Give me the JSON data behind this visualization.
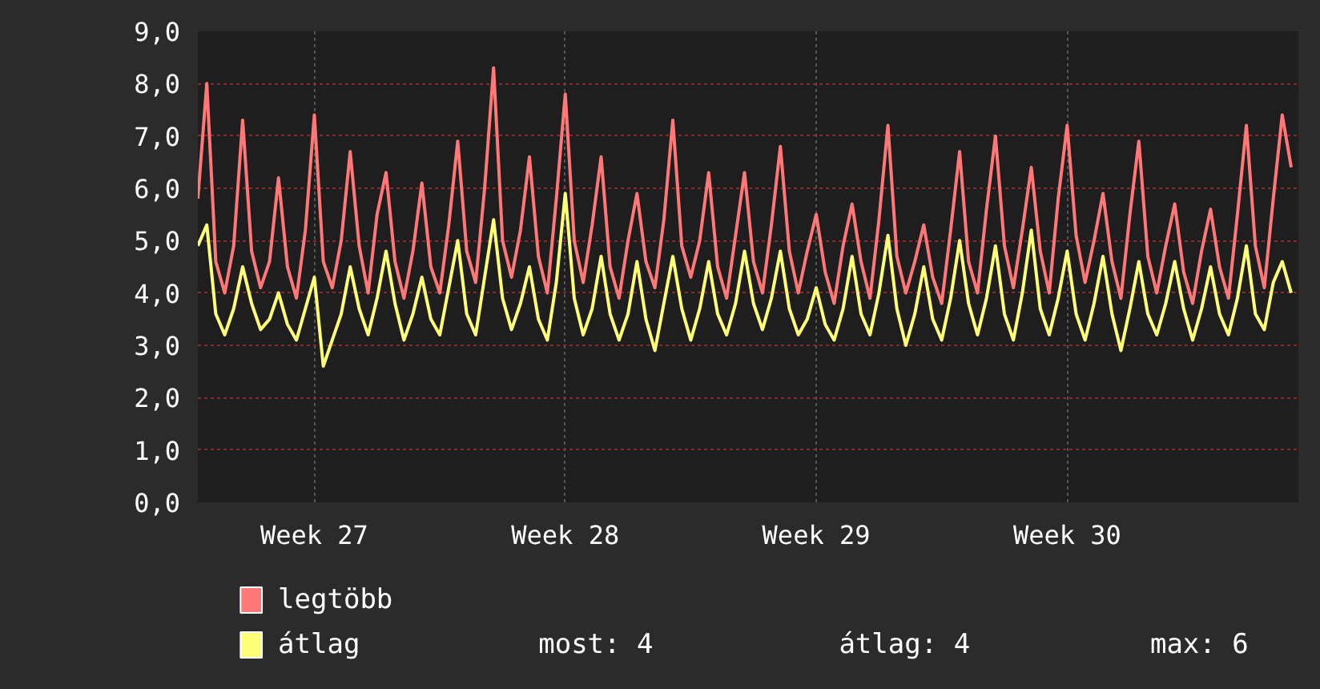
{
  "chart_data": {
    "type": "line",
    "categories": [
      null,
      null,
      null,
      null,
      null,
      null,
      null,
      null,
      null,
      null,
      null,
      null,
      null,
      "Week 27",
      null,
      null,
      null,
      null,
      null,
      null,
      null,
      null,
      null,
      null,
      null,
      null,
      null,
      null,
      null,
      null,
      null,
      null,
      null,
      null,
      null,
      null,
      null,
      null,
      null,
      null,
      null,
      "Week 28",
      null,
      null,
      null,
      null,
      null,
      null,
      null,
      null,
      null,
      null,
      null,
      null,
      null,
      null,
      null,
      null,
      null,
      null,
      null,
      null,
      null,
      null,
      null,
      null,
      null,
      null,
      null,
      "Week 29",
      null,
      null,
      null,
      null,
      null,
      null,
      null,
      null,
      null,
      null,
      null,
      null,
      null,
      null,
      null,
      null,
      null,
      null,
      null,
      null,
      null,
      null,
      null,
      null,
      null,
      null,
      null,
      "Week 30",
      null,
      null,
      null,
      null,
      null,
      null,
      null,
      null,
      null,
      null,
      null,
      null,
      null,
      null,
      null,
      null,
      null,
      null,
      null,
      null,
      null,
      null,
      null,
      null,
      null
    ],
    "series": [
      {
        "name": "legtöbb",
        "color": "#ff7777",
        "values": [
          5.8,
          8.0,
          4.6,
          4.0,
          4.9,
          7.3,
          4.8,
          4.1,
          4.6,
          6.2,
          4.5,
          3.9,
          5.2,
          7.4,
          4.6,
          4.1,
          5.0,
          6.7,
          4.9,
          4.0,
          5.5,
          6.3,
          4.6,
          3.9,
          4.8,
          6.1,
          4.5,
          4.0,
          5.3,
          6.9,
          4.8,
          4.2,
          6.0,
          8.3,
          5.0,
          4.3,
          5.2,
          6.6,
          4.7,
          4.0,
          5.8,
          7.8,
          5.0,
          4.2,
          5.3,
          6.6,
          4.5,
          3.9,
          5.0,
          5.9,
          4.6,
          4.1,
          5.4,
          7.3,
          4.9,
          4.3,
          5.0,
          6.3,
          4.5,
          3.9,
          5.1,
          6.3,
          4.6,
          4.0,
          5.3,
          6.8,
          4.8,
          4.0,
          4.8,
          5.5,
          4.4,
          3.8,
          4.9,
          5.7,
          4.6,
          3.9,
          5.4,
          7.2,
          4.7,
          4.0,
          4.6,
          5.3,
          4.3,
          3.8,
          5.2,
          6.7,
          4.6,
          4.0,
          5.6,
          7.0,
          4.9,
          4.1,
          5.2,
          6.4,
          4.8,
          4.0,
          5.8,
          7.2,
          5.1,
          4.2,
          5.0,
          5.9,
          4.6,
          3.9,
          5.5,
          6.9,
          4.7,
          4.0,
          4.9,
          5.7,
          4.4,
          3.8,
          4.8,
          5.6,
          4.5,
          3.9,
          5.5,
          7.2,
          4.9,
          4.1,
          5.8,
          7.4,
          6.4
        ]
      },
      {
        "name": "átlag",
        "color": "#ffff77",
        "values": [
          4.9,
          5.3,
          3.6,
          3.2,
          3.7,
          4.5,
          3.8,
          3.3,
          3.5,
          4.0,
          3.4,
          3.1,
          3.7,
          4.3,
          2.6,
          3.1,
          3.6,
          4.5,
          3.7,
          3.2,
          3.9,
          4.8,
          3.8,
          3.1,
          3.6,
          4.3,
          3.5,
          3.2,
          4.1,
          5.0,
          3.6,
          3.2,
          4.3,
          5.4,
          3.9,
          3.3,
          3.8,
          4.5,
          3.5,
          3.1,
          4.2,
          5.9,
          3.9,
          3.2,
          3.7,
          4.7,
          3.6,
          3.1,
          3.6,
          4.6,
          3.5,
          2.9,
          3.8,
          4.7,
          3.7,
          3.1,
          3.7,
          4.6,
          3.6,
          3.2,
          3.8,
          4.8,
          3.8,
          3.3,
          3.9,
          4.8,
          3.7,
          3.2,
          3.5,
          4.1,
          3.4,
          3.1,
          3.7,
          4.7,
          3.6,
          3.2,
          4.0,
          5.1,
          3.7,
          3.0,
          3.6,
          4.5,
          3.5,
          3.1,
          3.9,
          5.0,
          3.8,
          3.2,
          3.9,
          4.9,
          3.6,
          3.1,
          4.0,
          5.2,
          3.7,
          3.2,
          3.9,
          4.8,
          3.6,
          3.1,
          3.8,
          4.7,
          3.6,
          2.9,
          3.7,
          4.6,
          3.6,
          3.2,
          3.8,
          4.6,
          3.7,
          3.1,
          3.7,
          4.5,
          3.6,
          3.2,
          3.9,
          4.9,
          3.6,
          3.3,
          4.2,
          4.6,
          4.0
        ]
      }
    ],
    "ylim": [
      0,
      9
    ],
    "yticks": [
      {
        "value": 0,
        "label": "0,0"
      },
      {
        "value": 1,
        "label": "1,0"
      },
      {
        "value": 2,
        "label": "2,0"
      },
      {
        "value": 3,
        "label": "3,0"
      },
      {
        "value": 4,
        "label": "4,0"
      },
      {
        "value": 5,
        "label": "5,0"
      },
      {
        "value": 6,
        "label": "6,0"
      },
      {
        "value": 7,
        "label": "7,0"
      },
      {
        "value": 8,
        "label": "8,0"
      },
      {
        "value": 9,
        "label": "9,0"
      }
    ],
    "grid": true,
    "legend": "bottom",
    "annotations": [
      "most: 4",
      "átlag: 4",
      "max: 6"
    ]
  }
}
